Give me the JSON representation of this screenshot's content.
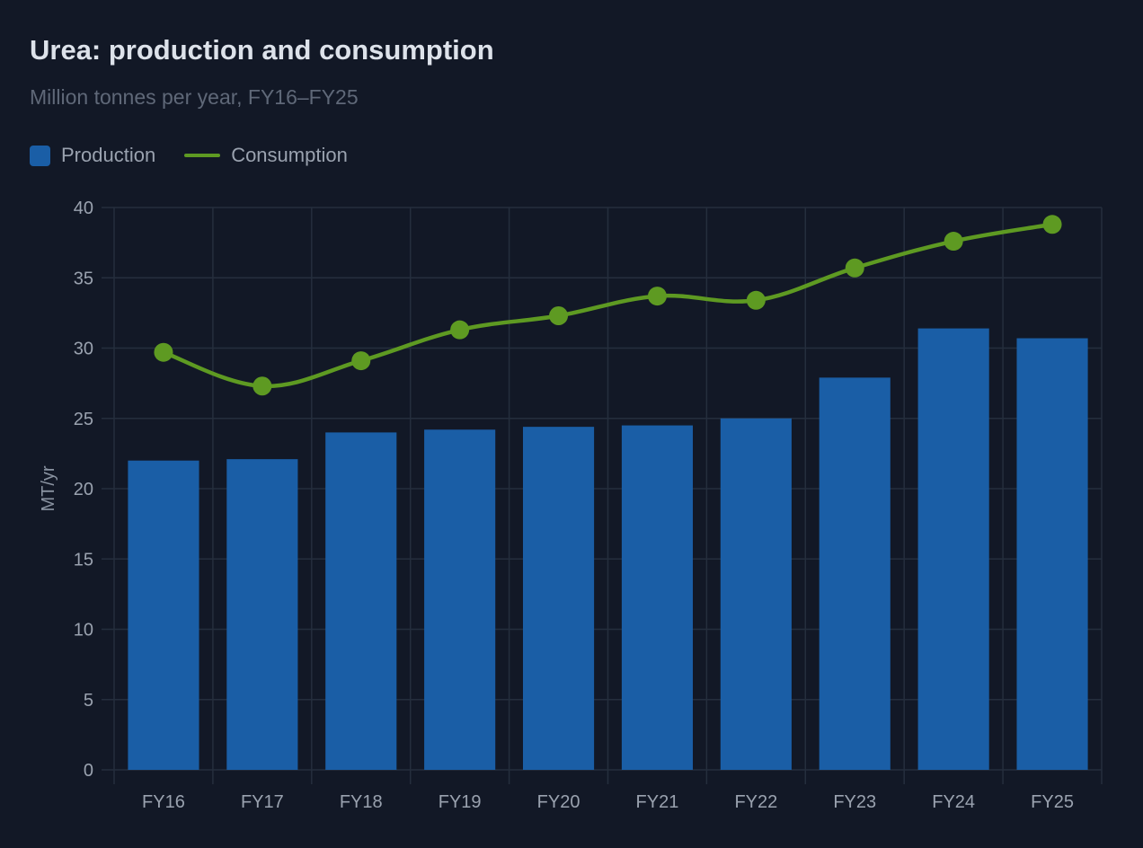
{
  "header": {
    "title": "Urea: production and consumption",
    "subtitle": "Million tonnes per year, FY16–FY25"
  },
  "legend": {
    "production_label": "Production",
    "consumption_label": "Consumption"
  },
  "colors": {
    "production": "#1a5ea6",
    "consumption": "#5e9a22",
    "grid": "#252e3d",
    "background": "#121826"
  },
  "chart_data": {
    "type": "bar",
    "title": "Urea: production and consumption",
    "subtitle": "Million tonnes per year, FY16–FY25",
    "xlabel": "",
    "ylabel": "MT/yr",
    "categories": [
      "FY16",
      "FY17",
      "FY18",
      "FY19",
      "FY20",
      "FY21",
      "FY22",
      "FY23",
      "FY24",
      "FY25"
    ],
    "series": [
      {
        "name": "Production",
        "type": "bar",
        "values": [
          22.0,
          22.1,
          24.0,
          24.2,
          24.4,
          24.5,
          25.0,
          27.9,
          31.4,
          30.7
        ]
      },
      {
        "name": "Consumption",
        "type": "line",
        "values": [
          29.7,
          27.3,
          29.1,
          31.3,
          32.3,
          33.7,
          33.4,
          35.7,
          37.6,
          38.8
        ]
      }
    ],
    "ylim": [
      0,
      40
    ],
    "yticks": [
      0,
      5,
      10,
      15,
      20,
      25,
      30,
      35,
      40
    ],
    "grid": true,
    "legend_position": "top-left"
  }
}
